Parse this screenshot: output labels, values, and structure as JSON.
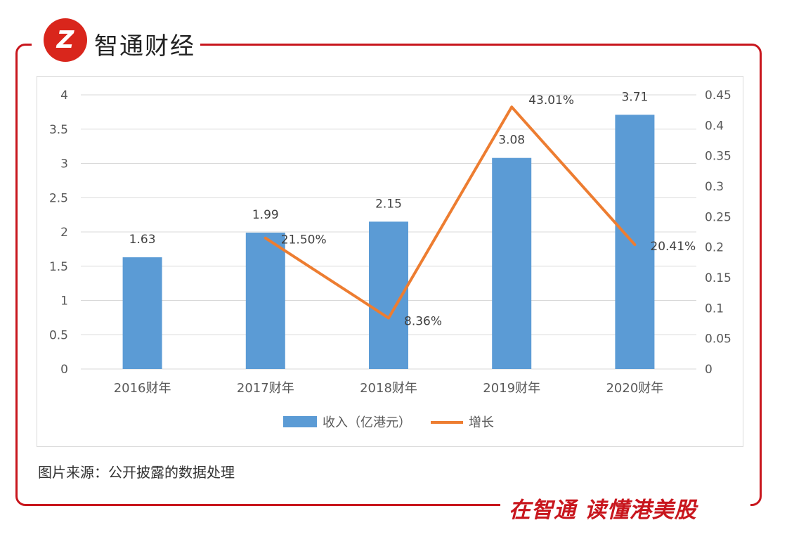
{
  "brand": {
    "logo_mark": "Z",
    "name": "智通财经"
  },
  "slogan": "在智通  读懂港美股",
  "source": "图片来源：公开披露的数据处理",
  "colors": {
    "bar": "#5b9bd5",
    "line": "#ed7d31",
    "brand": "#c8161d",
    "grid": "#d9d9d9"
  },
  "chart_data": {
    "type": "bar+line",
    "categories": [
      "2016财年",
      "2017财年",
      "2018财年",
      "2019财年",
      "2020财年"
    ],
    "series": [
      {
        "name": "收入（亿港元）",
        "type": "bar",
        "axis": "left",
        "values": [
          1.63,
          1.99,
          2.15,
          3.08,
          3.71
        ],
        "labels": [
          "1.63",
          "1.99",
          "2.15",
          "3.08",
          "3.71"
        ]
      },
      {
        "name": "增长",
        "type": "line",
        "axis": "right",
        "values": [
          null,
          0.215,
          0.0836,
          0.4301,
          0.2041
        ],
        "labels": [
          "",
          "21.50%",
          "8.36%",
          "43.01%",
          "20.41%"
        ]
      }
    ],
    "left_axis": {
      "min": 0,
      "max": 4,
      "ticks": [
        "0",
        "0.5",
        "1",
        "1.5",
        "2",
        "2.5",
        "3",
        "3.5",
        "4"
      ]
    },
    "right_axis": {
      "min": 0,
      "max": 0.45,
      "ticks": [
        "0",
        "0.05",
        "0.1",
        "0.15",
        "0.2",
        "0.25",
        "0.3",
        "0.35",
        "0.4",
        "0.45"
      ]
    },
    "legend_position": "bottom-center",
    "grid": true
  }
}
